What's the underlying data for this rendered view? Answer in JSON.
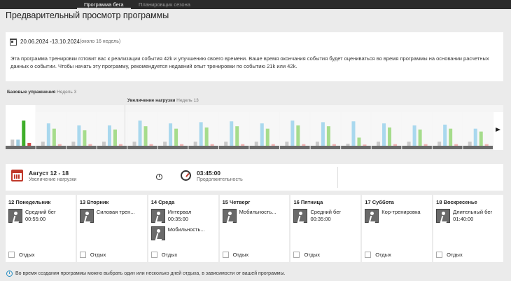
{
  "tabs": [
    {
      "label": "Программа бега",
      "active": true
    },
    {
      "label": "Планировщик сезона",
      "active": false
    }
  ],
  "page_title": "Предварительный просмотр программы",
  "info": {
    "date_range": "20.06.2024 -13.10.2024",
    "weeks": "(около 16 недель)",
    "text": "Эта программа тренировки готовит вас к реализации события 42k и улучшению своего времени. Ваше время окончания события будет оцениваться во время программы на основании расчетных данных о событии. Чтобы начать эту программу, рекомендуется недавний опыт тренировки по событию 21k или 42k."
  },
  "phases": [
    {
      "name": "Базовые упражнения",
      "weeks": "Недель 3"
    },
    {
      "name": "Увеличение нагрузки",
      "weeks": "Недель 13"
    }
  ],
  "chart_data": {
    "type": "bar",
    "selected_week": 0,
    "colors": {
      "gray": "#c8c8c8",
      "blue": "#a9d8ee",
      "green": "#a6dc8c",
      "pink": "#f0b3b3",
      "selected_green": "#3fae2a",
      "selected_blue": "#9ccbe0",
      "selected_red": "#d24a4a"
    },
    "weeks": [
      {
        "gray": 0.15,
        "blue": 0.15,
        "green": 0.62,
        "pink": 0.07
      },
      {
        "gray": 0.1,
        "blue": 0.55,
        "green": 0.42,
        "pink": 0.04
      },
      {
        "gray": 0.1,
        "blue": 0.5,
        "green": 0.38,
        "pink": 0.04
      },
      {
        "gray": 0.1,
        "blue": 0.5,
        "green": 0.4,
        "pink": 0.04
      },
      {
        "gray": 0.1,
        "blue": 0.62,
        "green": 0.48,
        "pink": 0.04
      },
      {
        "gray": 0.1,
        "blue": 0.55,
        "green": 0.42,
        "pink": 0.04
      },
      {
        "gray": 0.1,
        "blue": 0.58,
        "green": 0.45,
        "pink": 0.04
      },
      {
        "gray": 0.1,
        "blue": 0.6,
        "green": 0.48,
        "pink": 0.04
      },
      {
        "gray": 0.1,
        "blue": 0.55,
        "green": 0.42,
        "pink": 0.04
      },
      {
        "gray": 0.1,
        "blue": 0.62,
        "green": 0.5,
        "pink": 0.04
      },
      {
        "gray": 0.1,
        "blue": 0.58,
        "green": 0.48,
        "pink": 0.04
      },
      {
        "gray": 0.05,
        "blue": 0.6,
        "green": 0.2,
        "pink": 0.03
      },
      {
        "gray": 0.1,
        "blue": 0.55,
        "green": 0.45,
        "pink": 0.04
      },
      {
        "gray": 0.1,
        "blue": 0.5,
        "green": 0.4,
        "pink": 0.04
      },
      {
        "gray": 0.1,
        "blue": 0.52,
        "green": 0.42,
        "pink": 0.04
      },
      {
        "gray": 0.1,
        "blue": 0.42,
        "green": 0.35,
        "pink": 0.04
      }
    ]
  },
  "summary": {
    "week": "Август 12 - 18",
    "phase": "Увеличение нагрузки",
    "duration": "03:45:00",
    "duration_label": "Продолжительность"
  },
  "days": [
    {
      "title": "12 Понедельник",
      "workouts": [
        {
          "name": "Средний бег",
          "time": "00:55:00"
        }
      ],
      "rest": "Отдых"
    },
    {
      "title": "13 Вторник",
      "workouts": [
        {
          "name": "Силовая трен...",
          "time": ""
        }
      ],
      "rest": "Отдых"
    },
    {
      "title": "14 Среда",
      "workouts": [
        {
          "name": "Интервал",
          "time": "00:35:00"
        },
        {
          "name": "Мобильность...",
          "time": ""
        }
      ],
      "rest": "Отдых"
    },
    {
      "title": "15 Четверг",
      "workouts": [
        {
          "name": "Мобильность...",
          "time": ""
        }
      ],
      "rest": "Отдых"
    },
    {
      "title": "16 Пятница",
      "workouts": [
        {
          "name": "Средний бег",
          "time": "00:35:00"
        }
      ],
      "rest": "Отдых"
    },
    {
      "title": "17 Суббота",
      "workouts": [
        {
          "name": "Кор-тренировка",
          "time": ""
        }
      ],
      "rest": "Отдых"
    },
    {
      "title": "18 Воскресенье",
      "workouts": [
        {
          "name": "Длительный бег",
          "time": "01:40:00"
        }
      ],
      "rest": "Отдых"
    }
  ],
  "icons": {
    "calendar": "calendar-icon",
    "timer": "stopwatch-icon",
    "info": "info-icon",
    "workout": "runner-icon",
    "next": "chevron-right-icon"
  },
  "footer_note": "Во время создания программы можно выбрать один или несколько дней отдыха, в зависимости от вашей программы."
}
